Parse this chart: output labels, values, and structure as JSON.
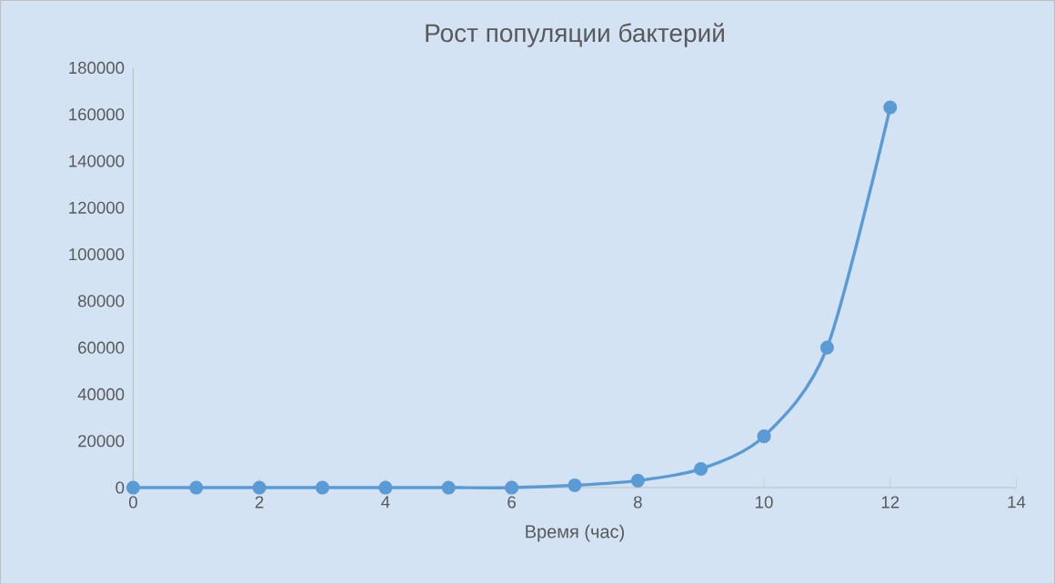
{
  "chart_data": {
    "type": "line",
    "title": "Рост популяции бактерий",
    "xlabel": "Время (час)",
    "x": [
      0,
      1,
      2,
      3,
      4,
      5,
      6,
      7,
      8,
      9,
      10,
      11,
      12
    ],
    "series": [
      {
        "color": "#5b9bd5",
        "values": [
          0,
          0,
          0,
          0,
          0,
          0,
          0,
          1000,
          3000,
          8000,
          22000,
          60000,
          163000
        ]
      }
    ],
    "xlim": [
      0,
      14
    ],
    "xticks": [
      0,
      2,
      4,
      6,
      8,
      10,
      12,
      14
    ],
    "ylim": [
      0,
      180000
    ],
    "yticks": [
      0,
      20000,
      40000,
      60000,
      80000,
      100000,
      120000,
      140000,
      160000,
      180000
    ],
    "grid": false,
    "marker": "circle",
    "line_style": "solid"
  }
}
